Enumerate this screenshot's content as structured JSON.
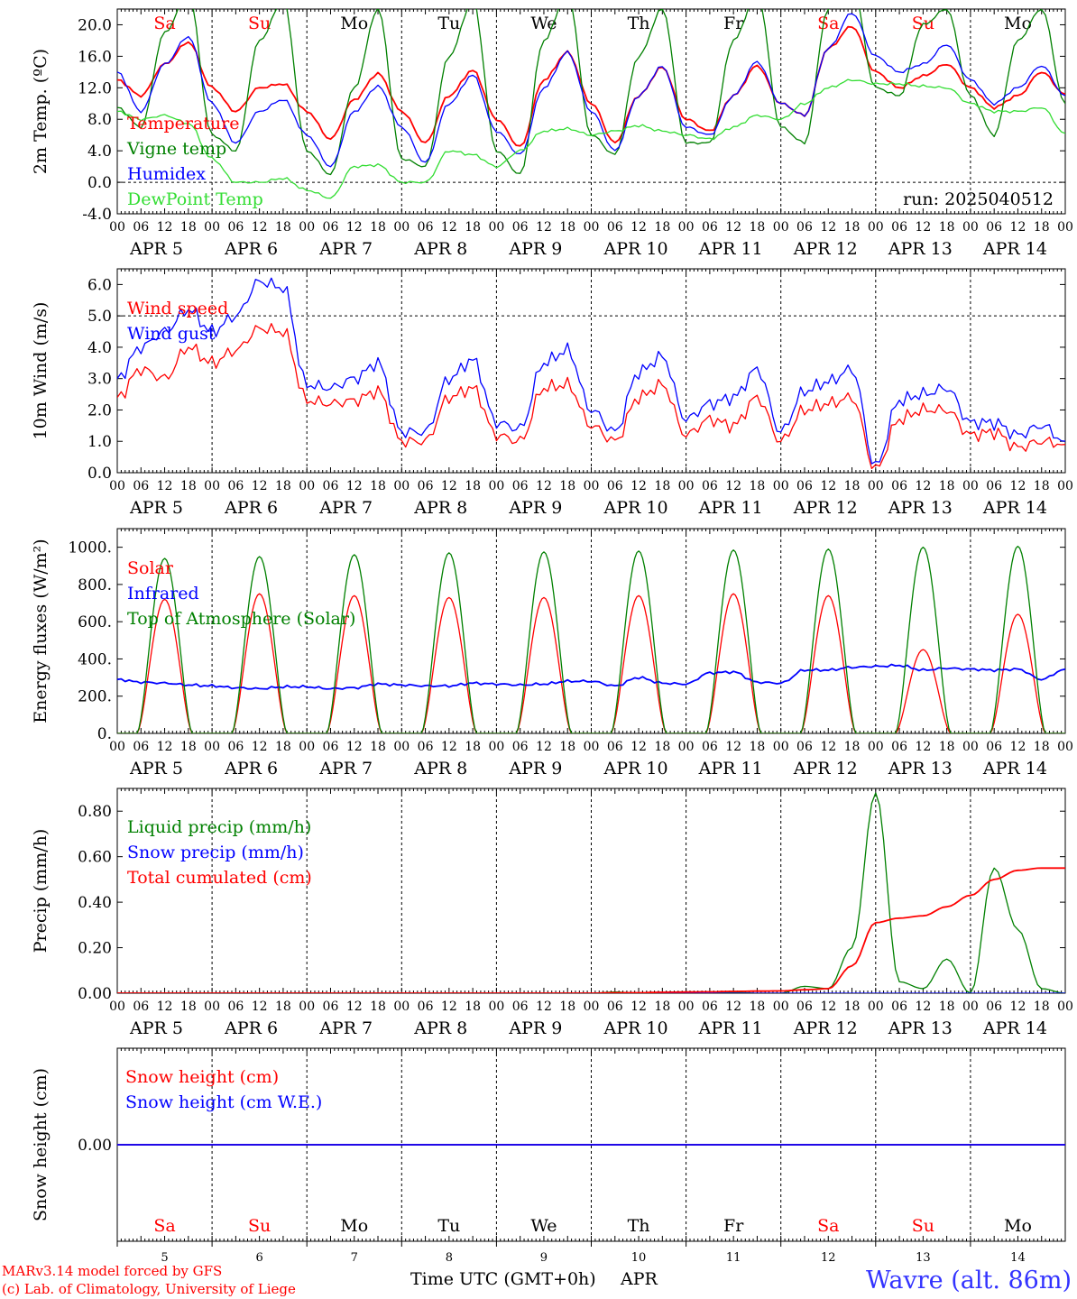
{
  "run_label": "run: 2025040512",
  "credits": [
    "MARv3.14 model forced by GFS",
    "(c) Lab. of Climatology, University of Liege"
  ],
  "station": "Wavre (alt. 86m)",
  "time_axis_label": "Time UTC (GMT+0h)",
  "month_label": "APR",
  "colors": {
    "red": "#ff0000",
    "green": "#008000",
    "blue": "#0000ff",
    "lightgreen": "#33dd33",
    "station": "#3333ff"
  },
  "chart_data": [
    {
      "type": "line",
      "ylabel": "2m Temp. (ºC)",
      "ylim": [
        -4,
        22
      ],
      "yticks": [
        "-4.0",
        "0.0",
        "4.0",
        "8.0",
        "12.0",
        "16.0",
        "20.0"
      ],
      "hlines": [
        0
      ],
      "x": {
        "start": "2025-04-05 00:00",
        "step_hours": 6,
        "days": 10
      },
      "day_names": [
        "Sa",
        "Su",
        "Mo",
        "Tu",
        "We",
        "Th",
        "Fr",
        "Sa",
        "Su",
        "Mo"
      ],
      "weekend": [
        true,
        true,
        false,
        false,
        false,
        false,
        false,
        true,
        true,
        false
      ],
      "hour_ticks": [
        "00",
        "06",
        "12",
        "18"
      ],
      "day_labels": [
        "APR 5",
        "APR 6",
        "APR 7",
        "APR 8",
        "APR 9",
        "APR 10",
        "APR 11",
        "APR 12",
        "APR 13",
        "APR 14"
      ],
      "series": [
        {
          "name": "Temperature",
          "color": "#ff0000",
          "values": [
            13,
            11,
            15,
            17.8,
            12,
            9,
            12,
            12.5,
            9,
            5.5,
            10.5,
            13.8,
            9,
            5,
            11,
            14.2,
            8,
            4.5,
            13,
            16.5,
            10,
            5,
            11,
            14.6,
            8,
            6.5,
            11,
            14.8,
            10,
            8.5,
            17,
            19.8,
            14,
            12,
            13.5,
            15,
            12,
            9.5,
            11,
            14,
            11.2
          ]
        },
        {
          "name": "Vigne temp",
          "color": "#008000",
          "values": [
            9.5,
            7,
            19,
            24,
            6,
            4,
            18,
            23,
            4,
            1,
            12,
            22,
            3,
            2,
            16,
            23,
            4,
            1,
            18,
            24,
            6,
            3.5,
            16,
            22,
            5,
            5,
            18,
            24,
            7,
            5,
            22,
            25,
            12,
            11,
            20,
            22,
            11,
            6,
            18,
            22,
            10
          ]
        },
        {
          "name": "Humidex",
          "color": "#0000ff",
          "values": [
            14,
            9,
            15,
            18.5,
            10,
            5,
            9,
            10.5,
            6,
            2,
            9,
            12.2,
            7,
            2.5,
            10,
            13.6,
            6.5,
            3.5,
            12,
            16.5,
            9,
            4,
            11,
            14.7,
            7,
            6,
            11,
            15.3,
            10,
            8.5,
            17,
            21.5,
            16,
            14,
            15,
            17.5,
            13,
            10,
            12,
            14.8,
            11
          ]
        },
        {
          "name": "DewPoint Temp",
          "color": "#33dd33",
          "values": [
            9,
            8,
            8.5,
            7.5,
            3,
            0,
            0,
            0.5,
            -1,
            -2,
            2,
            2.2,
            0,
            0,
            4,
            3.5,
            2,
            4,
            6.5,
            6.8,
            6,
            6.5,
            7.2,
            6.5,
            6,
            5.5,
            7,
            8.5,
            8,
            10,
            12,
            13,
            12.5,
            12.5,
            12.2,
            12,
            10,
            9,
            9,
            9.5,
            6.2
          ]
        }
      ]
    },
    {
      "type": "line",
      "ylabel": "10m Wind (m/s)",
      "ylim": [
        0,
        6.5
      ],
      "yticks": [
        "0.0",
        "1.0",
        "2.0",
        "3.0",
        "4.0",
        "5.0",
        "6.0"
      ],
      "hlines": [
        5
      ],
      "x": {
        "start": "2025-04-05 00:00",
        "step_hours": 6,
        "days": 10
      },
      "hour_ticks": [
        "00",
        "06",
        "12",
        "18"
      ],
      "day_labels": [
        "APR 5",
        "APR 6",
        "APR 7",
        "APR 8",
        "APR 9",
        "APR 10",
        "APR 11",
        "APR 12",
        "APR 13",
        "APR 14"
      ],
      "series": [
        {
          "name": "Wind speed",
          "color": "#ff0000",
          "values": [
            2.4,
            3.3,
            3.0,
            4.0,
            3.5,
            3.9,
            4.6,
            4.5,
            2.3,
            2.2,
            2.3,
            2.6,
            1.0,
            1.0,
            2.4,
            2.7,
            1.2,
            1.0,
            2.7,
            2.8,
            1.5,
            1.0,
            2.4,
            2.8,
            1.2,
            1.7,
            1.5,
            2.4,
            1.0,
            2.0,
            2.2,
            2.4,
            0.1,
            1.7,
            2.0,
            2.0,
            1.2,
            1.3,
            0.8,
            1.0,
            0.9
          ]
        },
        {
          "name": "Wind gust",
          "color": "#0000ff",
          "values": [
            3.0,
            4.0,
            4.5,
            5.2,
            4.5,
            5.0,
            6.1,
            5.9,
            2.8,
            2.7,
            3.0,
            3.5,
            1.3,
            1.3,
            3.0,
            3.6,
            1.6,
            1.4,
            3.5,
            3.9,
            2.0,
            1.3,
            3.2,
            3.7,
            1.7,
            2.2,
            2.4,
            3.3,
            1.3,
            2.6,
            2.9,
            3.3,
            0.2,
            2.3,
            2.5,
            2.7,
            1.6,
            1.6,
            1.2,
            1.5,
            1.0
          ]
        }
      ]
    },
    {
      "type": "line",
      "ylabel": "Energy fluxes (W/m²)",
      "ylim": [
        0,
        1100
      ],
      "yticks": [
        "0.",
        "200.",
        "400.",
        "600.",
        "800.",
        "1000."
      ],
      "x": {
        "start": "2025-04-05 00:00",
        "step_hours": 6,
        "days": 10
      },
      "hour_ticks": [
        "00",
        "06",
        "12",
        "18"
      ],
      "day_labels": [
        "APR 5",
        "APR 6",
        "APR 7",
        "APR 8",
        "APR 9",
        "APR 10",
        "APR 11",
        "APR 12",
        "APR 13",
        "APR 14"
      ],
      "series": [
        {
          "name": "Solar",
          "color": "#ff0000",
          "peaks": [
            720,
            750,
            740,
            730,
            730,
            740,
            750,
            740,
            450,
            640
          ]
        },
        {
          "name": "Infrared",
          "color": "#0000ff",
          "values": [
            290,
            275,
            270,
            260,
            255,
            245,
            240,
            250,
            250,
            240,
            245,
            265,
            260,
            255,
            255,
            270,
            265,
            260,
            265,
            280,
            280,
            255,
            300,
            270,
            265,
            325,
            330,
            275,
            270,
            340,
            340,
            355,
            360,
            365,
            340,
            350,
            345,
            340,
            345,
            290,
            345
          ]
        },
        {
          "name": "Top of Atmosphere (Solar)",
          "color": "#008000",
          "peaks": [
            940,
            950,
            960,
            970,
            975,
            980,
            985,
            990,
            1000,
            1005
          ]
        }
      ]
    },
    {
      "type": "line",
      "ylabel": "Precip (mm/h)",
      "ylim": [
        0,
        0.9
      ],
      "yticks": [
        "0.00",
        "0.20",
        "0.40",
        "0.60",
        "0.80"
      ],
      "x": {
        "start": "2025-04-05 00:00",
        "step_hours": 6,
        "days": 10
      },
      "hour_ticks": [
        "00",
        "06",
        "12",
        "18"
      ],
      "day_labels": [
        "APR 5",
        "APR 6",
        "APR 7",
        "APR 8",
        "APR 9",
        "APR 10",
        "APR 11",
        "APR 12",
        "APR 13",
        "APR 14"
      ],
      "series": [
        {
          "name": "Liquid precip (mm/h)",
          "color": "#008000",
          "values": [
            0,
            0,
            0,
            0,
            0,
            0,
            0,
            0,
            0,
            0,
            0,
            0,
            0,
            0,
            0,
            0,
            0,
            0,
            0,
            0,
            0,
            0.005,
            0,
            0,
            0,
            0,
            0.005,
            0,
            0,
            0.03,
            0.02,
            0.2,
            0.88,
            0.05,
            0.02,
            0.15,
            0,
            0.55,
            0.28,
            0.02,
            0
          ]
        },
        {
          "name": "Snow precip (mm/h)",
          "color": "#0000ff",
          "values": [
            0,
            0,
            0,
            0,
            0,
            0,
            0,
            0,
            0,
            0,
            0,
            0,
            0,
            0,
            0,
            0,
            0,
            0,
            0,
            0,
            0,
            0,
            0,
            0,
            0,
            0,
            0,
            0,
            0,
            0,
            0,
            0,
            0,
            0,
            0,
            0,
            0,
            0,
            0,
            0,
            0
          ]
        },
        {
          "name": "Total cumulated (cm)",
          "color": "#ff0000",
          "values": [
            0,
            0,
            0,
            0,
            0,
            0,
            0,
            0,
            0,
            0,
            0,
            0,
            0,
            0,
            0,
            0,
            0,
            0,
            0,
            0,
            0,
            0.002,
            0.002,
            0.004,
            0.005,
            0.006,
            0.008,
            0.009,
            0.01,
            0.015,
            0.02,
            0.12,
            0.31,
            0.33,
            0.34,
            0.38,
            0.43,
            0.5,
            0.54,
            0.55,
            0.55
          ]
        }
      ]
    },
    {
      "type": "line",
      "ylabel": "Snow height (cm)",
      "ylim": [
        -1,
        1
      ],
      "yticks": [
        "0.00"
      ],
      "x": {
        "start": "2025-04-05 00:00",
        "step_hours": 6,
        "days": 10
      },
      "day_names": [
        "Sa",
        "Su",
        "Mo",
        "Tu",
        "We",
        "Th",
        "Fr",
        "Sa",
        "Su",
        "Mo"
      ],
      "weekend": [
        true,
        true,
        false,
        false,
        false,
        false,
        false,
        true,
        true,
        false
      ],
      "day_numbers": [
        "5",
        "6",
        "7",
        "8",
        "9",
        "10",
        "11",
        "12",
        "13",
        "14"
      ],
      "series": [
        {
          "name": "Snow height (cm)",
          "color": "#ff0000",
          "values": [
            0,
            0
          ]
        },
        {
          "name": "Snow height (cm W.E.)",
          "color": "#0000ff",
          "values": [
            0,
            0
          ]
        }
      ]
    }
  ]
}
